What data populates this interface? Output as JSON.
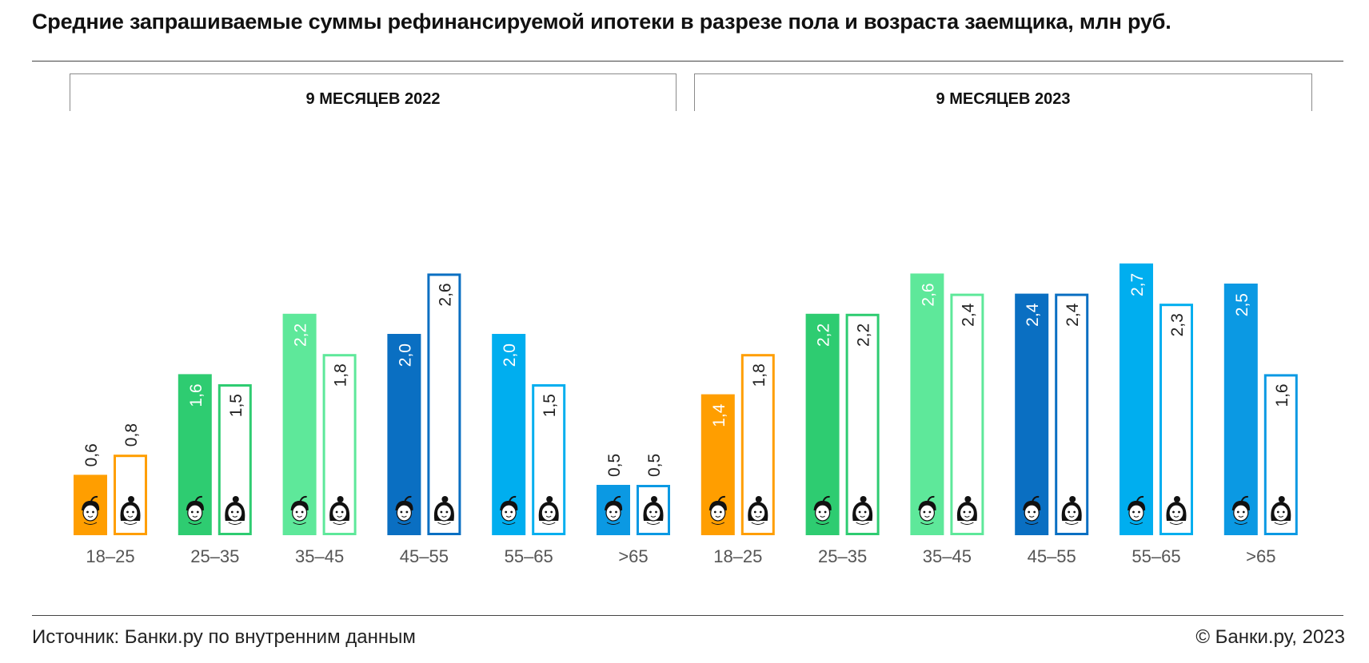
{
  "title": "Средние запрашиваемые суммы рефинансируемой ипотеки в разрезе пола и возраста заемщика, млн руб.",
  "periods": [
    "9 МЕСЯЦЕВ 2022",
    "9 МЕСЯЦЕВ 2023"
  ],
  "footer": {
    "source": "Источник: Банки.ру по внутренним данным",
    "copyright": "© Банки.ру, 2023"
  },
  "colors": {
    "18–25": "#ff9e00",
    "25–35": "#2ecc71",
    "35–45": "#5ee89a",
    "45–55": "#0a6fc2",
    "55–65": "#00aeef",
    ">65": "#0b99e3"
  },
  "icons": [
    "male-face-icon",
    "female-face-icon"
  ],
  "chart_data": [
    {
      "type": "bar",
      "period": "9 МЕСЯЦЕВ 2022",
      "categories": [
        "18–25",
        "25–35",
        "35–45",
        "45–55",
        "55–65",
        ">65"
      ],
      "series": [
        {
          "gender": "male",
          "style": "filled",
          "values": [
            0.6,
            1.6,
            2.2,
            2.0,
            2.0,
            0.5
          ],
          "labels": [
            "0,6",
            "1,6",
            "2,2",
            "2,0",
            "2,0",
            "0,5"
          ]
        },
        {
          "gender": "female",
          "style": "outlined",
          "values": [
            0.8,
            1.5,
            1.8,
            2.6,
            1.5,
            0.5
          ],
          "labels": [
            "0,8",
            "1,5",
            "1,8",
            "2,6",
            "1,5",
            "0,5"
          ]
        }
      ]
    },
    {
      "type": "bar",
      "period": "9 МЕСЯЦЕВ 2023",
      "categories": [
        "18–25",
        "25–35",
        "35–45",
        "45–55",
        "55–65",
        ">65"
      ],
      "series": [
        {
          "gender": "male",
          "style": "filled",
          "values": [
            1.4,
            2.2,
            2.6,
            2.4,
            2.7,
            2.5
          ],
          "labels": [
            "1,4",
            "2,2",
            "2,6",
            "2,4",
            "2,7",
            "2,5"
          ]
        },
        {
          "gender": "female",
          "style": "outlined",
          "values": [
            1.8,
            2.2,
            2.4,
            2.4,
            2.3,
            1.6
          ],
          "labels": [
            "1,8",
            "2,2",
            "2,4",
            "2,4",
            "2,3",
            "1,6"
          ]
        }
      ]
    }
  ]
}
